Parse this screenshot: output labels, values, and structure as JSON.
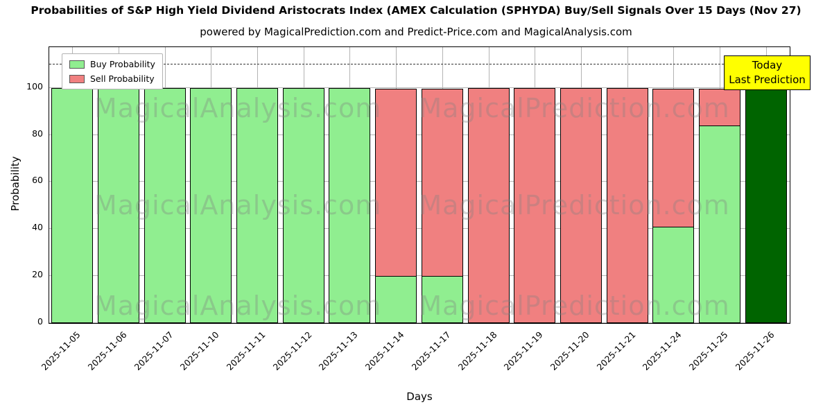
{
  "figure": {
    "title": "Probabilities of S&P High Yield Dividend Aristocrats Index (AMEX Calculation (SPHYDA) Buy/Sell Signals Over 15 Days (Nov 27)",
    "subtitle": "powered by MagicalPrediction.com and Predict-Price.com and MagicalAnalysis.com",
    "xlabel": "Days",
    "ylabel": "Probability"
  },
  "legend": {
    "items": [
      {
        "label": "Buy Probability",
        "color": "#90ee90"
      },
      {
        "label": "Sell Probability",
        "color": "#f08080"
      }
    ]
  },
  "annotation": {
    "line1": "Today",
    "line2": "Last Prediction",
    "bg": "#ffff00"
  },
  "watermarks": {
    "left": "MagicalAnalysis.com",
    "right": "MagicalPrediction.com"
  },
  "chart_data": {
    "type": "bar",
    "stacked": true,
    "title": "Probabilities of S&P High Yield Dividend Aristocrats Index (AMEX Calculation (SPHYDA) Buy/Sell Signals Over 15 Days (Nov 27)",
    "xlabel": "Days",
    "ylabel": "Probability",
    "categories": [
      "2025-11-05",
      "2025-11-06",
      "2025-11-07",
      "2025-11-10",
      "2025-11-11",
      "2025-11-12",
      "2025-11-13",
      "2025-11-14",
      "2025-11-17",
      "2025-11-18",
      "2025-11-19",
      "2025-11-20",
      "2025-11-21",
      "2025-11-24",
      "2025-11-25",
      "2025-11-26"
    ],
    "series": [
      {
        "name": "Buy Probability",
        "color": "#90ee90",
        "values": [
          100,
          100,
          100,
          100,
          100,
          100,
          100,
          20,
          20,
          0,
          0,
          0,
          0,
          41,
          84,
          100
        ]
      },
      {
        "name": "Sell Probability",
        "color": "#f08080",
        "values": [
          0,
          0,
          0,
          0,
          0,
          0,
          0,
          80,
          80,
          100,
          100,
          100,
          100,
          59,
          16,
          0
        ]
      }
    ],
    "today_index": 15,
    "today_color": "#006400",
    "ylim": [
      0,
      117
    ],
    "yticks": [
      0,
      20,
      40,
      60,
      80,
      100
    ],
    "dashed_line_y": 110,
    "grid": true,
    "legend_position": "upper left"
  }
}
